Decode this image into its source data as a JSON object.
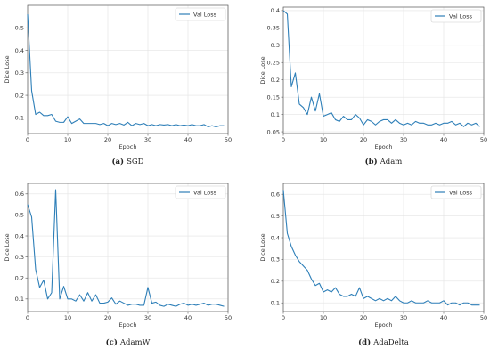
{
  "colors": {
    "series": "#2e7fb8"
  },
  "chart_data": [
    {
      "type": "line",
      "caption_prefix": "(a)",
      "caption_name": "SGD",
      "xlabel": "Epoch",
      "ylabel": "Dice Lose",
      "xlim": [
        0,
        50
      ],
      "ylim": [
        0.03,
        0.6
      ],
      "xticks": [
        0,
        10,
        20,
        30,
        40,
        50
      ],
      "yticks": [
        0.1,
        0.2,
        0.3,
        0.4,
        0.5
      ],
      "grid": true,
      "legend": "top-right",
      "series": [
        {
          "name": "Val Loss",
          "x": [
            0,
            1,
            2,
            3,
            4,
            5,
            6,
            7,
            8,
            9,
            10,
            11,
            12,
            13,
            14,
            15,
            16,
            17,
            18,
            19,
            20,
            21,
            22,
            23,
            24,
            25,
            26,
            27,
            28,
            29,
            30,
            31,
            32,
            33,
            34,
            35,
            36,
            37,
            38,
            39,
            40,
            41,
            42,
            43,
            44,
            45,
            46,
            47,
            48,
            49
          ],
          "y": [
            0.56,
            0.22,
            0.115,
            0.125,
            0.11,
            0.11,
            0.115,
            0.085,
            0.08,
            0.08,
            0.105,
            0.075,
            0.085,
            0.095,
            0.075,
            0.075,
            0.075,
            0.075,
            0.07,
            0.075,
            0.065,
            0.075,
            0.07,
            0.075,
            0.068,
            0.08,
            0.065,
            0.075,
            0.07,
            0.075,
            0.065,
            0.07,
            0.065,
            0.07,
            0.068,
            0.07,
            0.065,
            0.07,
            0.065,
            0.068,
            0.065,
            0.07,
            0.065,
            0.065,
            0.07,
            0.06,
            0.065,
            0.06,
            0.065,
            0.065
          ]
        }
      ]
    },
    {
      "type": "line",
      "caption_prefix": "(b)",
      "caption_name": "Adam",
      "xlabel": "Epoch",
      "ylabel": "Dice Lose",
      "xlim": [
        0,
        50
      ],
      "ylim": [
        0.045,
        0.41
      ],
      "xticks": [
        0,
        10,
        20,
        30,
        40,
        50
      ],
      "yticks": [
        0.05,
        0.1,
        0.15,
        0.2,
        0.25,
        0.3,
        0.35,
        0.4
      ],
      "grid": true,
      "legend": "top-right",
      "series": [
        {
          "name": "Val Loss",
          "x": [
            0,
            1,
            2,
            3,
            4,
            5,
            6,
            7,
            8,
            9,
            10,
            11,
            12,
            13,
            14,
            15,
            16,
            17,
            18,
            19,
            20,
            21,
            22,
            23,
            24,
            25,
            26,
            27,
            28,
            29,
            30,
            31,
            32,
            33,
            34,
            35,
            36,
            37,
            38,
            39,
            40,
            41,
            42,
            43,
            44,
            45,
            46,
            47,
            48,
            49
          ],
          "y": [
            0.4,
            0.39,
            0.18,
            0.22,
            0.13,
            0.12,
            0.1,
            0.15,
            0.11,
            0.16,
            0.095,
            0.1,
            0.105,
            0.085,
            0.08,
            0.095,
            0.085,
            0.085,
            0.1,
            0.09,
            0.07,
            0.085,
            0.08,
            0.07,
            0.08,
            0.085,
            0.085,
            0.075,
            0.085,
            0.075,
            0.07,
            0.075,
            0.07,
            0.08,
            0.075,
            0.075,
            0.07,
            0.07,
            0.075,
            0.07,
            0.075,
            0.075,
            0.08,
            0.07,
            0.075,
            0.065,
            0.075,
            0.07,
            0.075,
            0.065
          ]
        }
      ]
    },
    {
      "type": "line",
      "caption_prefix": "(c)",
      "caption_name": "AdamW",
      "xlabel": "Epoch",
      "ylabel": "Dice Lose",
      "xlim": [
        0,
        50
      ],
      "ylim": [
        0.04,
        0.65
      ],
      "xticks": [
        0,
        10,
        20,
        30,
        40,
        50
      ],
      "yticks": [
        0.1,
        0.2,
        0.3,
        0.4,
        0.5,
        0.6
      ],
      "grid": true,
      "legend": "top-right",
      "series": [
        {
          "name": "Val Loss",
          "x": [
            0,
            1,
            2,
            3,
            4,
            5,
            6,
            7,
            8,
            9,
            10,
            11,
            12,
            13,
            14,
            15,
            16,
            17,
            18,
            19,
            20,
            21,
            22,
            23,
            24,
            25,
            26,
            27,
            28,
            29,
            30,
            31,
            32,
            33,
            34,
            35,
            36,
            37,
            38,
            39,
            40,
            41,
            42,
            43,
            44,
            45,
            46,
            47,
            48,
            49
          ],
          "y": [
            0.55,
            0.49,
            0.24,
            0.155,
            0.19,
            0.1,
            0.13,
            0.62,
            0.1,
            0.16,
            0.1,
            0.1,
            0.09,
            0.12,
            0.09,
            0.13,
            0.09,
            0.12,
            0.08,
            0.08,
            0.085,
            0.105,
            0.075,
            0.09,
            0.08,
            0.07,
            0.075,
            0.075,
            0.07,
            0.07,
            0.155,
            0.08,
            0.085,
            0.07,
            0.065,
            0.075,
            0.07,
            0.065,
            0.075,
            0.08,
            0.07,
            0.075,
            0.07,
            0.075,
            0.08,
            0.07,
            0.075,
            0.075,
            0.07,
            0.065
          ]
        }
      ]
    },
    {
      "type": "line",
      "caption_prefix": "(d)",
      "caption_name": "AdaDelta",
      "xlabel": "Epoch",
      "ylabel": "Dice Lose",
      "xlim": [
        0,
        50
      ],
      "ylim": [
        0.06,
        0.65
      ],
      "xticks": [
        0,
        10,
        20,
        30,
        40,
        50
      ],
      "yticks": [
        0.1,
        0.2,
        0.3,
        0.4,
        0.5,
        0.6
      ],
      "grid": true,
      "legend": "top-right",
      "series": [
        {
          "name": "Val Loss",
          "x": [
            0,
            1,
            2,
            3,
            4,
            5,
            6,
            7,
            8,
            9,
            10,
            11,
            12,
            13,
            14,
            15,
            16,
            17,
            18,
            19,
            20,
            21,
            22,
            23,
            24,
            25,
            26,
            27,
            28,
            29,
            30,
            31,
            32,
            33,
            34,
            35,
            36,
            37,
            38,
            39,
            40,
            41,
            42,
            43,
            44,
            45,
            46,
            47,
            48,
            49
          ],
          "y": [
            0.62,
            0.42,
            0.36,
            0.32,
            0.29,
            0.27,
            0.25,
            0.21,
            0.18,
            0.19,
            0.15,
            0.16,
            0.15,
            0.17,
            0.14,
            0.13,
            0.13,
            0.14,
            0.13,
            0.17,
            0.12,
            0.13,
            0.12,
            0.11,
            0.12,
            0.11,
            0.12,
            0.11,
            0.13,
            0.11,
            0.1,
            0.1,
            0.11,
            0.1,
            0.1,
            0.1,
            0.11,
            0.1,
            0.1,
            0.1,
            0.11,
            0.09,
            0.1,
            0.1,
            0.09,
            0.1,
            0.1,
            0.09,
            0.09,
            0.09
          ]
        }
      ]
    }
  ]
}
